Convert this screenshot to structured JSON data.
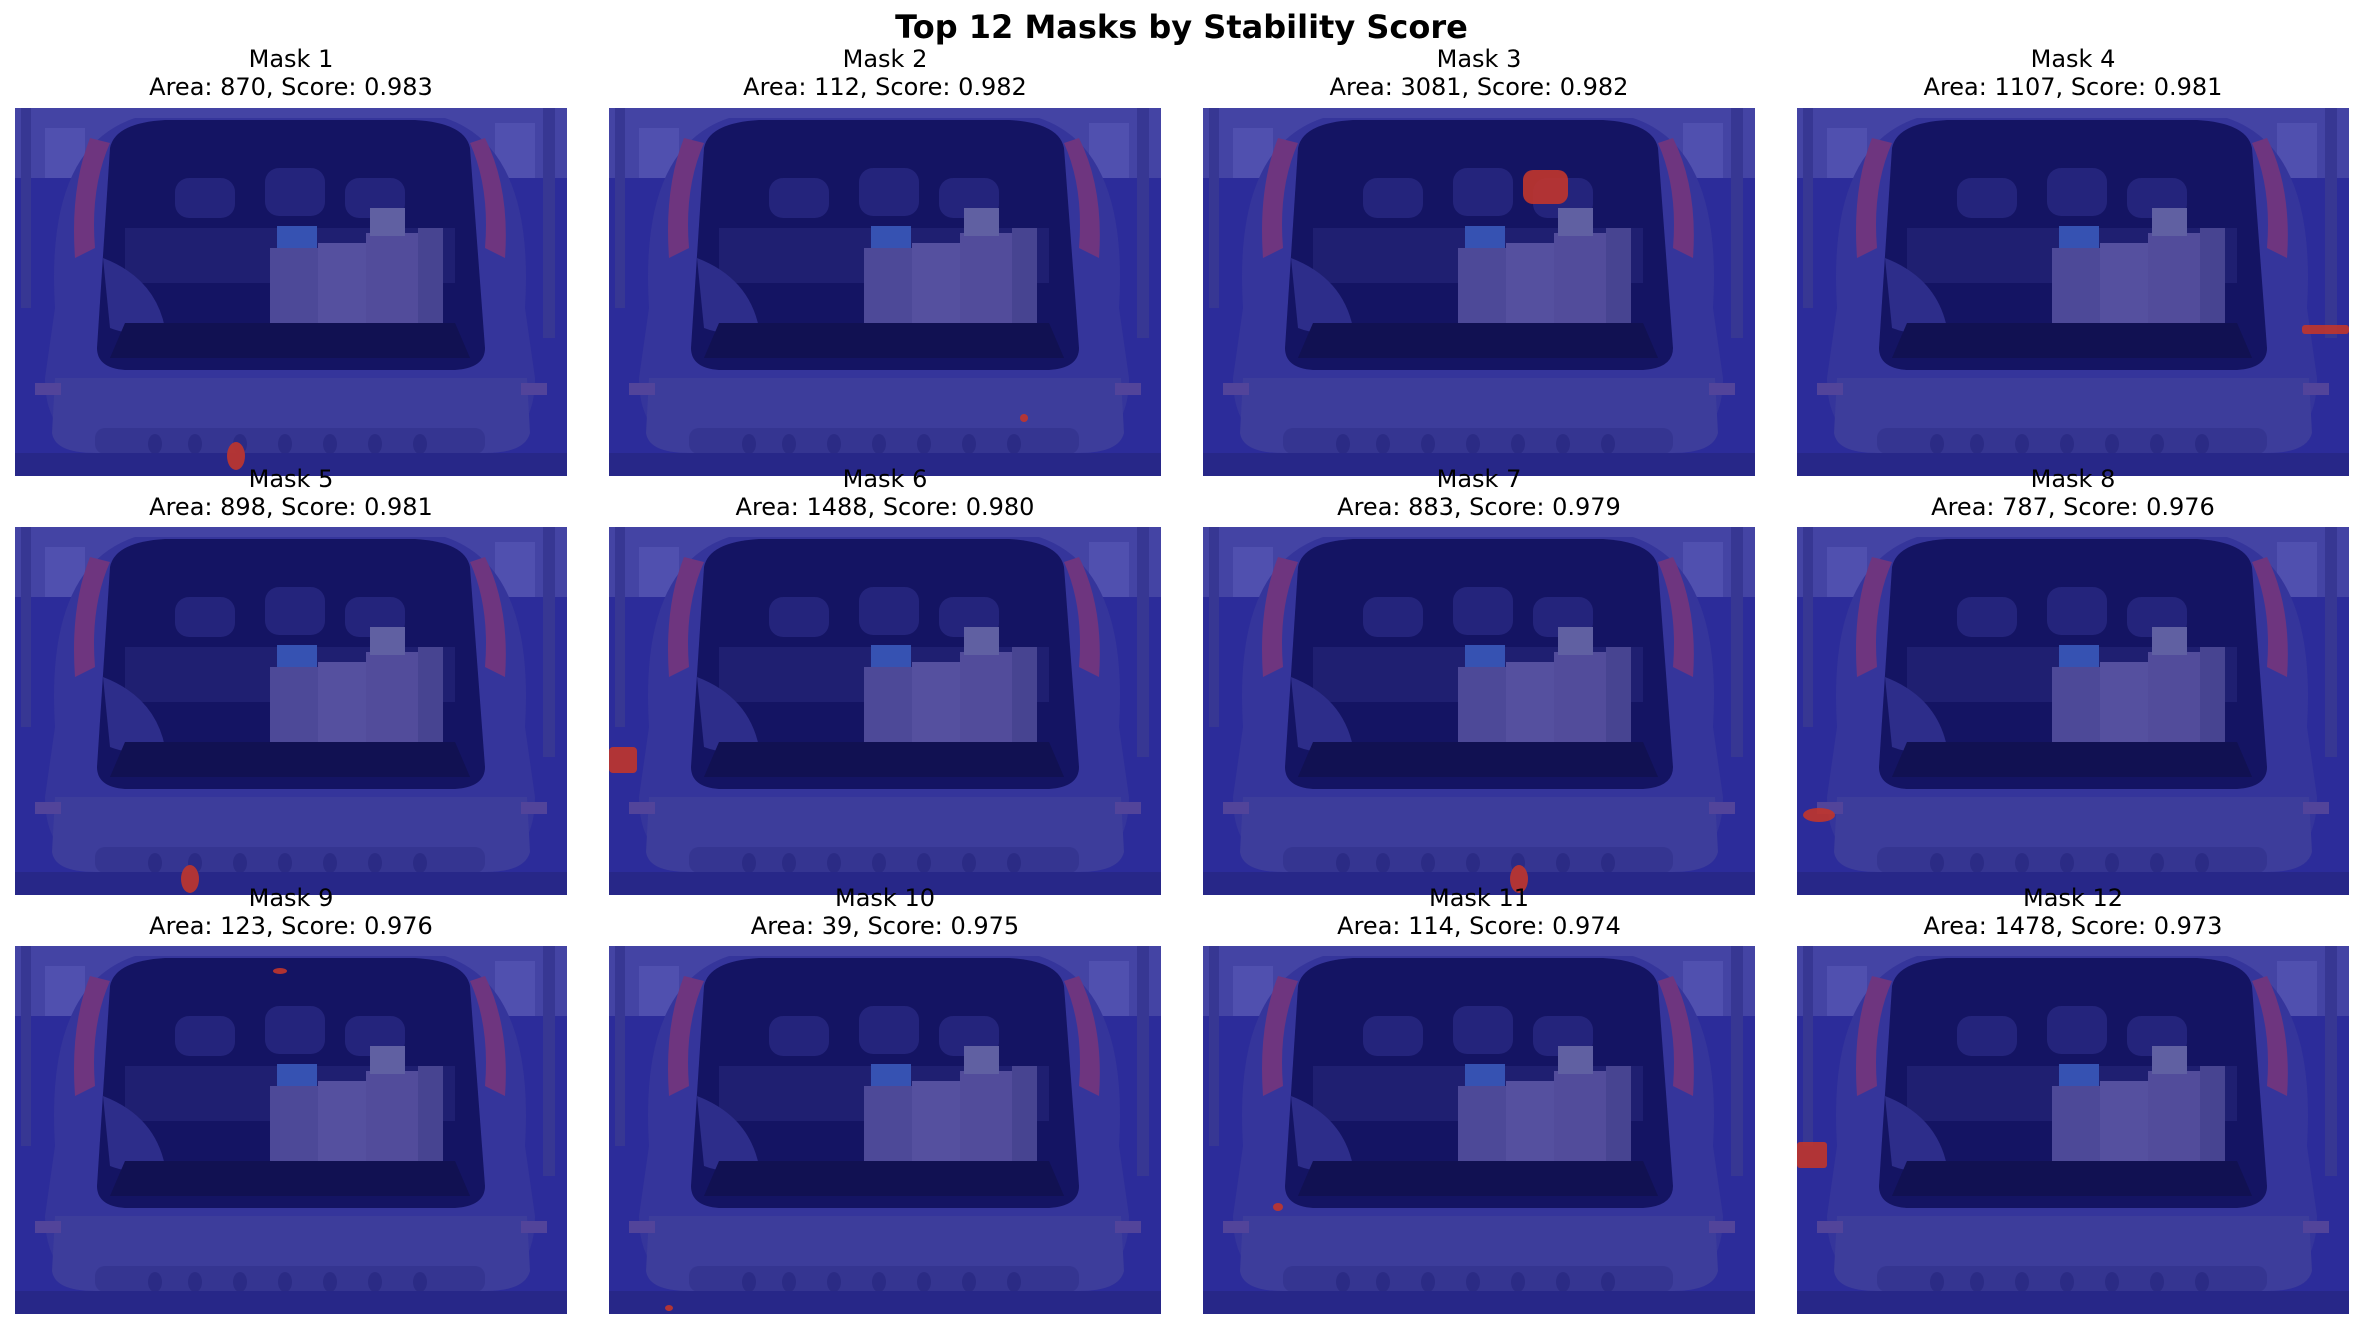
{
  "figure": {
    "title": "Top 12 Masks by Stability Score"
  },
  "colors": {
    "overlay": "#1a1a8c",
    "mask_highlight": "#d83a1f"
  },
  "panels": [
    {
      "label": "Mask 1",
      "info": "Area: 870, Score: 0.983"
    },
    {
      "label": "Mask 2",
      "info": "Area: 112, Score: 0.982"
    },
    {
      "label": "Mask 3",
      "info": "Area: 3081, Score: 0.982"
    },
    {
      "label": "Mask 4",
      "info": "Area: 1107, Score: 0.981"
    },
    {
      "label": "Mask 5",
      "info": "Area: 898, Score: 0.981"
    },
    {
      "label": "Mask 6",
      "info": "Area: 1488, Score: 0.980"
    },
    {
      "label": "Mask 7",
      "info": "Area: 883, Score: 0.979"
    },
    {
      "label": "Mask 8",
      "info": "Area: 787, Score: 0.976"
    },
    {
      "label": "Mask 9",
      "info": "Area: 123, Score: 0.976"
    },
    {
      "label": "Mask 10",
      "info": "Area: 39, Score: 0.975"
    },
    {
      "label": "Mask 11",
      "info": "Area: 114, Score: 0.974"
    },
    {
      "label": "Mask 12",
      "info": "Area: 1478, Score: 0.973"
    }
  ]
}
